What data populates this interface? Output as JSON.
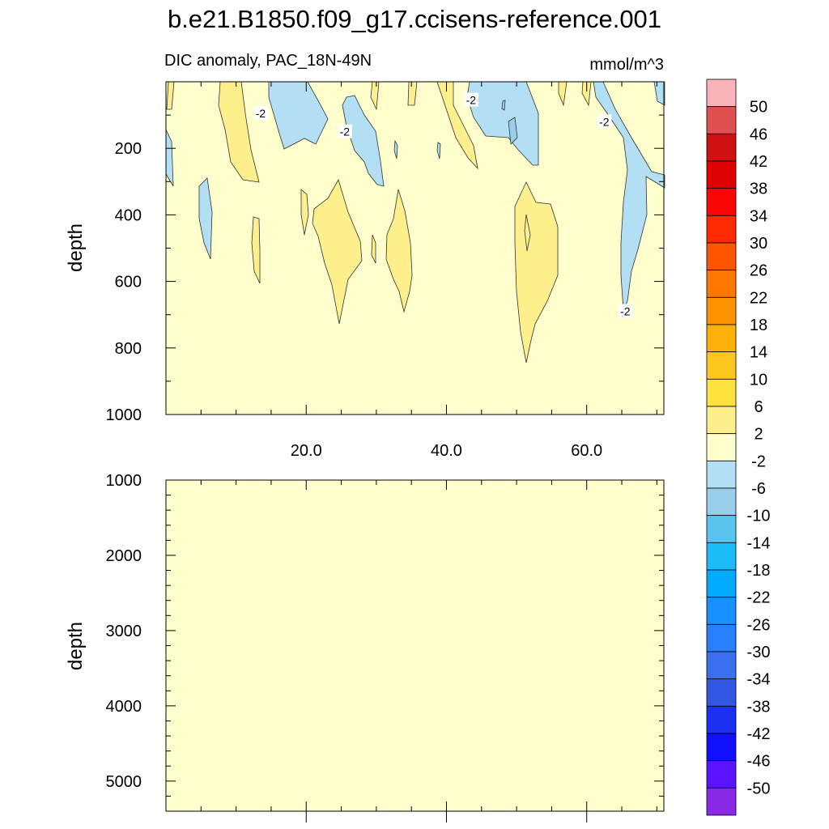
{
  "chart_data": {
    "type": "heatmap",
    "title": "b.e21.B1850.f09_g17.ccisens-reference.001",
    "panel_top": {
      "subtitle": "DIC anomaly, PAC_18N-49N",
      "units": "mmol/m^3",
      "xlim": [
        0,
        71
      ],
      "ylim": [
        1000,
        0
      ],
      "ylabel": "depth",
      "xticks": [
        20,
        40,
        60
      ],
      "xtick_labels": [
        "20.0",
        "40.0",
        "60.0"
      ],
      "yticks": [
        200,
        400,
        600,
        800,
        1000
      ],
      "ytick_labels": [
        "200",
        "400",
        "600",
        "800",
        "1000"
      ],
      "background_value": "-2 to 2",
      "contour_labels": [
        {
          "label": "-2",
          "x": 13.5,
          "y": 95
        },
        {
          "label": "-2",
          "x": 25.5,
          "y": 150
        },
        {
          "label": "-2",
          "x": 43.5,
          "y": 55
        },
        {
          "label": "-2",
          "x": 62.5,
          "y": 120
        },
        {
          "label": "-2",
          "x": 65.5,
          "y": 690
        }
      ]
    },
    "panel_bottom": {
      "xlim": [
        0,
        71
      ],
      "ylim": [
        5400,
        1000
      ],
      "ylabel": "depth",
      "yticks": [
        1000,
        2000,
        3000,
        4000,
        5000
      ],
      "ytick_labels": [
        "1000",
        "2000",
        "3000",
        "4000",
        "5000"
      ],
      "background_value": "-2 to 2"
    },
    "colorbar": {
      "levels": [
        "50",
        "46",
        "42",
        "38",
        "34",
        "30",
        "26",
        "22",
        "18",
        "14",
        "10",
        "6",
        "2",
        "-2",
        "-6",
        "-10",
        "-14",
        "-18",
        "-22",
        "-26",
        "-30",
        "-34",
        "-38",
        "-42",
        "-46",
        "-50"
      ],
      "colors": [
        "#fbb4b9",
        "#e05050",
        "#cc1212",
        "#de0202",
        "#fc0505",
        "#ff2a00",
        "#ff5500",
        "#ff7700",
        "#fb9200",
        "#fdaf0a",
        "#fdc71e",
        "#fde13c",
        "#fdf08c",
        "#feffcc",
        "#b2dff4",
        "#98cdec",
        "#5ac3f0",
        "#1cbcf8",
        "#00aaff",
        "#1890ff",
        "#2a7fff",
        "#3c6ff0",
        "#3357e0",
        "#1b30f0",
        "#1010ff",
        "#5a14ff",
        "#8a28e8"
      ]
    }
  }
}
